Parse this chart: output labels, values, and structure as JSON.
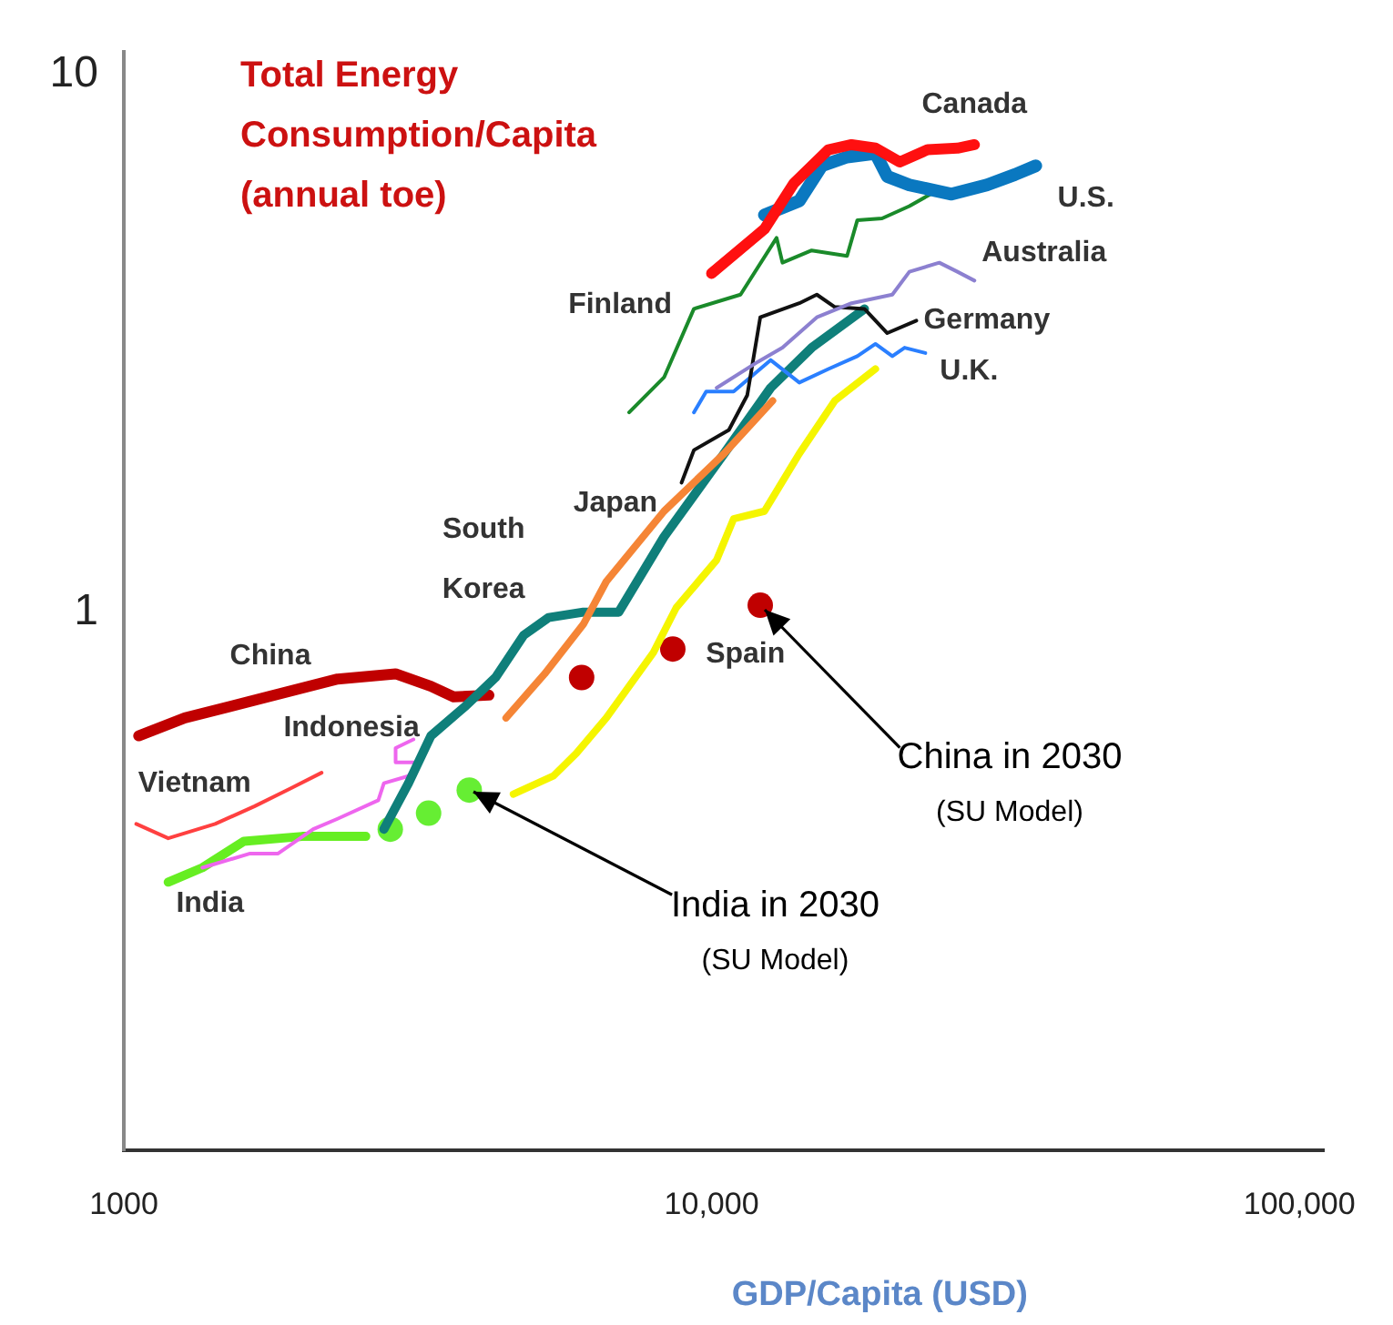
{
  "chart_data": {
    "type": "line",
    "ylabel": "Total Energy Consumption/Capita (annual toe)",
    "xlabel": "GDP/Capita (USD)",
    "log": "xy",
    "xlim": [
      1000,
      110000
    ],
    "ylim": [
      0.1,
      11
    ],
    "xticks": [
      1000,
      {
        "value": 10000,
        "label": "10,000"
      },
      {
        "value": 100000,
        "label": "100,000"
      }
    ],
    "yticks": [
      1,
      10
    ],
    "grid": false,
    "legend": false,
    "series": [
      {
        "name": "Canada",
        "color": "#ff1010",
        "x": [
          10000,
          12300,
          13800,
          15800,
          17300,
          19000,
          20900,
          23300,
          26200,
          28000
        ],
        "values": [
          4.26,
          5.15,
          6.26,
          7.23,
          7.39,
          7.28,
          6.86,
          7.23,
          7.28,
          7.39
        ]
      },
      {
        "name": "U.S.",
        "color": "#0a78c0",
        "x": [
          12300,
          14100,
          15400,
          17000,
          19000,
          19900,
          21700,
          25600,
          29400,
          32800,
          35600
        ],
        "values": [
          5.47,
          5.81,
          6.75,
          7.01,
          7.12,
          6.45,
          6.22,
          5.98,
          6.22,
          6.5,
          6.75
        ]
      },
      {
        "name": "Australia",
        "color": "#8c80d0",
        "x": [
          10200,
          12000,
          13200,
          15100,
          17300,
          20300,
          21700,
          24400,
          26200,
          28000
        ],
        "values": [
          2.61,
          2.92,
          3.1,
          3.53,
          3.75,
          3.89,
          4.29,
          4.46,
          4.29,
          4.13
        ]
      },
      {
        "name": "Germany",
        "color": "#111111",
        "x": [
          8890,
          9330,
          10700,
          11500,
          12100,
          14100,
          15100,
          16200,
          18200,
          19900,
          22300
        ],
        "values": [
          1.74,
          2.0,
          2.18,
          2.53,
          3.53,
          3.75,
          3.89,
          3.69,
          3.66,
          3.3,
          3.48
        ]
      },
      {
        "name": "U.K.",
        "color": "#2a7fff",
        "x": [
          9330,
          9790,
          10900,
          12600,
          14100,
          15800,
          17700,
          19000,
          20300,
          21300,
          23100
        ],
        "values": [
          2.35,
          2.57,
          2.57,
          2.94,
          2.67,
          2.83,
          2.99,
          3.15,
          2.99,
          3.1,
          3.03
        ]
      },
      {
        "name": "Finland",
        "color": "#1a8a2a",
        "x": [
          7240,
          8300,
          9330,
          11200,
          12900,
          13200,
          14800,
          17000,
          17700,
          19500,
          21700,
          23900
        ],
        "values": [
          2.35,
          2.73,
          3.66,
          3.89,
          4.96,
          4.46,
          4.7,
          4.59,
          5.35,
          5.39,
          5.68,
          6.03
        ]
      },
      {
        "name": "Japan",
        "color": "#f58536",
        "x": [
          4470,
          5200,
          6050,
          6620,
          8300,
          10500,
          12700
        ],
        "values": [
          0.636,
          0.768,
          0.949,
          1.14,
          1.54,
          1.97,
          2.47
        ]
      },
      {
        "name": "South Korea",
        "color": "#0f7f7a",
        "x": [
          2770,
          3050,
          3330,
          3820,
          4290,
          4790,
          5280,
          6050,
          6950,
          8300,
          10500,
          12600,
          14800,
          18200
        ],
        "values": [
          0.395,
          0.481,
          0.589,
          0.67,
          0.756,
          0.906,
          0.977,
          1.0,
          1.0,
          1.38,
          1.97,
          2.61,
          3.1,
          3.66
        ]
      },
      {
        "name": "Spain",
        "color": "#f5f500",
        "x": [
          4600,
          5380,
          5890,
          6620,
          7960,
          8710,
          10200,
          10900,
          12300,
          14100,
          16200,
          19000
        ],
        "values": [
          0.459,
          0.496,
          0.547,
          0.636,
          0.841,
          1.02,
          1.25,
          1.49,
          1.54,
          1.97,
          2.47,
          2.83
        ]
      },
      {
        "name": "China",
        "color": "#c00000",
        "x": [
          1060,
          1270,
          1670,
          2310,
          2900,
          3330,
          3640,
          4180
        ],
        "values": [
          0.589,
          0.636,
          0.686,
          0.751,
          0.768,
          0.728,
          0.696,
          0.701
        ]
      },
      {
        "name": "Indonesia",
        "color": "#ee66ee",
        "x": [
          1360,
          1640,
          1830,
          2100,
          2310,
          2710,
          2770,
          3050,
          3170,
          2900,
          2900,
          3110
        ],
        "values": [
          0.335,
          0.356,
          0.356,
          0.395,
          0.413,
          0.447,
          0.481,
          0.496,
          0.526,
          0.526,
          0.559,
          0.58
        ]
      },
      {
        "name": "Vietnam",
        "color": "#ff4040",
        "x": [
          1050,
          1190,
          1430,
          1670,
          1920,
          2170
        ],
        "values": [
          0.404,
          0.38,
          0.404,
          0.436,
          0.47,
          0.503
        ]
      },
      {
        "name": "India",
        "color": "#66ee22",
        "x": [
          1190,
          1360,
          1600,
          2010,
          2580
        ],
        "values": [
          0.315,
          0.335,
          0.375,
          0.383,
          0.383
        ]
      },
      {
        "type": "scatter",
        "color": "#c00000",
        "x": [
          6010,
          8590,
          12100
        ],
        "values": [
          0.756,
          0.854,
          1.03
        ]
      },
      {
        "type": "scatter",
        "color": "#66ee33",
        "x": [
          2840,
          3300,
          3870
        ],
        "values": [
          0.395,
          0.423,
          0.467
        ]
      }
    ],
    "annotations": [
      {
        "text": "China in 2030\n(SU Model)",
        "x": 12100,
        "y": 1.03
      },
      {
        "text": "India in 2030\n(SU Model)",
        "x": 3870,
        "y": 0.467
      }
    ]
  }
}
